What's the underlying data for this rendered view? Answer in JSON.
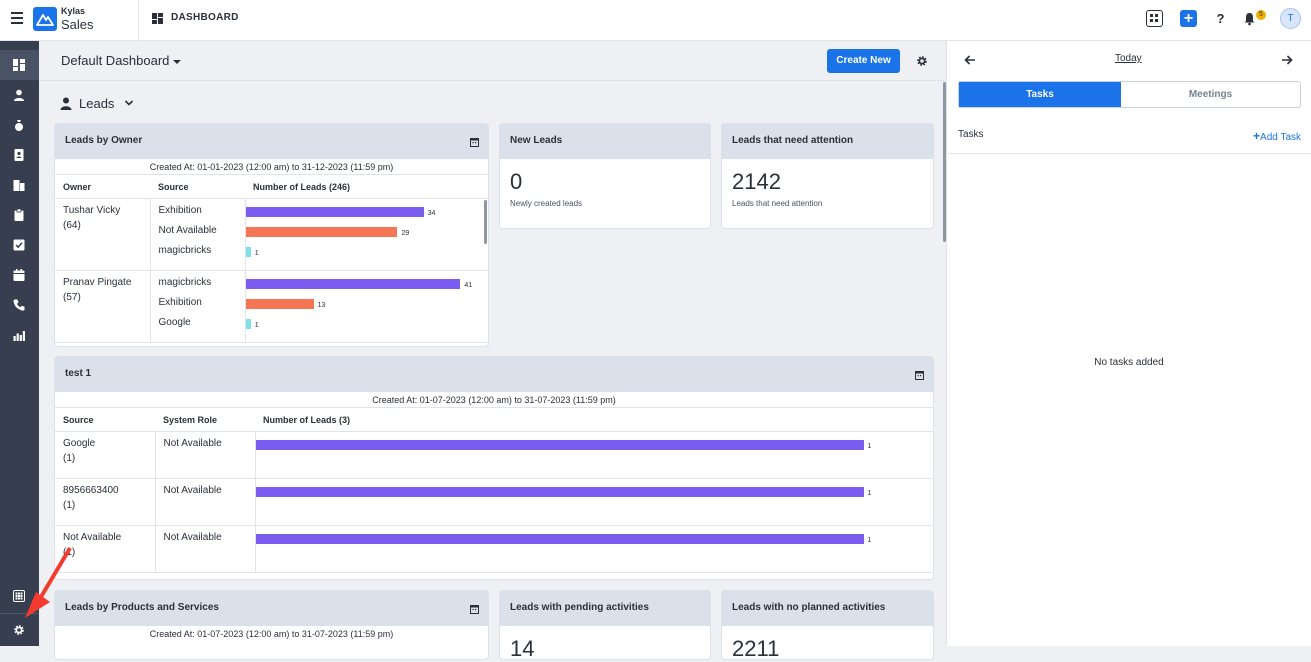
{
  "topbar": {
    "brand_top": "Kylas",
    "brand_bottom": "Sales",
    "section": "DASHBOARD",
    "notification_count": "5",
    "avatar_initial": "T"
  },
  "header": {
    "dashboard_name": "Default Dashboard",
    "create_button": "Create New"
  },
  "module": {
    "label": "Leads"
  },
  "leads_by_owner": {
    "title": "Leads by Owner",
    "created": "Created At: 01-01-2023 (12:00 am) to 31-12-2023 (11:59 pm)",
    "headers": [
      "Owner",
      "Source",
      "Number of Leads (246)"
    ],
    "rows": [
      {
        "owner": "Tushar Vicky",
        "count": "(64)",
        "sources": [
          "Exhibition",
          "Not Available",
          "magicbricks"
        ]
      },
      {
        "owner": "Pranav Pingate",
        "count": "(57)",
        "sources": [
          "magicbricks",
          "Exhibition",
          "Google"
        ]
      }
    ]
  },
  "new_leads": {
    "title": "New Leads",
    "value": "0",
    "sub": "Newly created leads"
  },
  "attention": {
    "title": "Leads that need attention",
    "value": "2142",
    "sub": "Leads that need attention"
  },
  "test1": {
    "title": "test 1",
    "created": "Created At: 01-07-2023 (12:00 am) to 31-07-2023 (11:59 pm)",
    "headers": [
      "Source",
      "System Role",
      "Number of Leads (3)"
    ],
    "rows": [
      {
        "source": "Google",
        "count": "(1)",
        "role": "Not Available"
      },
      {
        "source": "8956663400",
        "count": "(1)",
        "role": "Not Available"
      },
      {
        "source": "Not Available",
        "count": "(1)",
        "role": "Not Available"
      }
    ]
  },
  "products": {
    "title": "Leads by Products and Services",
    "created": "Created At: 01-07-2023 (12:00 am) to 31-07-2023 (11:59 pm)"
  },
  "pending": {
    "title": "Leads with pending activities",
    "value": "14"
  },
  "no_planned": {
    "title": "Leads with no planned activities",
    "value": "2211"
  },
  "right_panel": {
    "today": "Today",
    "tab_tasks": "Tasks",
    "tab_meetings": "Meetings",
    "tasks_label": "Tasks",
    "add_task": "Add Task",
    "empty": "No tasks added"
  },
  "chart_data": [
    {
      "type": "bar",
      "title": "Leads by Owner",
      "categories": [
        "Exhibition",
        "Not Available",
        "magicbricks",
        "magicbricks",
        "Exhibition",
        "Google"
      ],
      "values": [
        34,
        29,
        1,
        41,
        13,
        1
      ],
      "colors": [
        "#7b5cf0",
        "#f47655",
        "#7ee0e8",
        "#7b5cf0",
        "#f47655",
        "#7ee0e8"
      ]
    },
    {
      "type": "bar",
      "title": "test 1",
      "categories": [
        "Google",
        "8956663400",
        "Not Available"
      ],
      "values": [
        1,
        1,
        1
      ],
      "colors": [
        "#7b5cf0",
        "#7b5cf0",
        "#7b5cf0"
      ]
    }
  ]
}
